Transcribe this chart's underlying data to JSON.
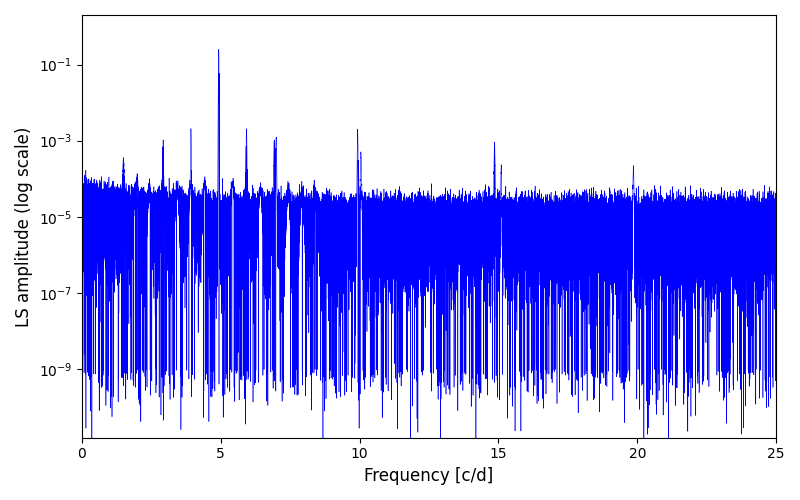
{
  "title": "",
  "xlabel": "Frequency [c/d]",
  "ylabel": "LS amplitude (log scale)",
  "line_color": "#0000ff",
  "line_width": 0.4,
  "xlim": [
    0,
    25
  ],
  "ylim_log": [
    -10.8,
    0.3
  ],
  "yscale": "log",
  "figsize": [
    8.0,
    5.0
  ],
  "dpi": 100,
  "background_color": "#ffffff",
  "main_freq": 4.9315,
  "num_points": 50000,
  "seed": 12345
}
